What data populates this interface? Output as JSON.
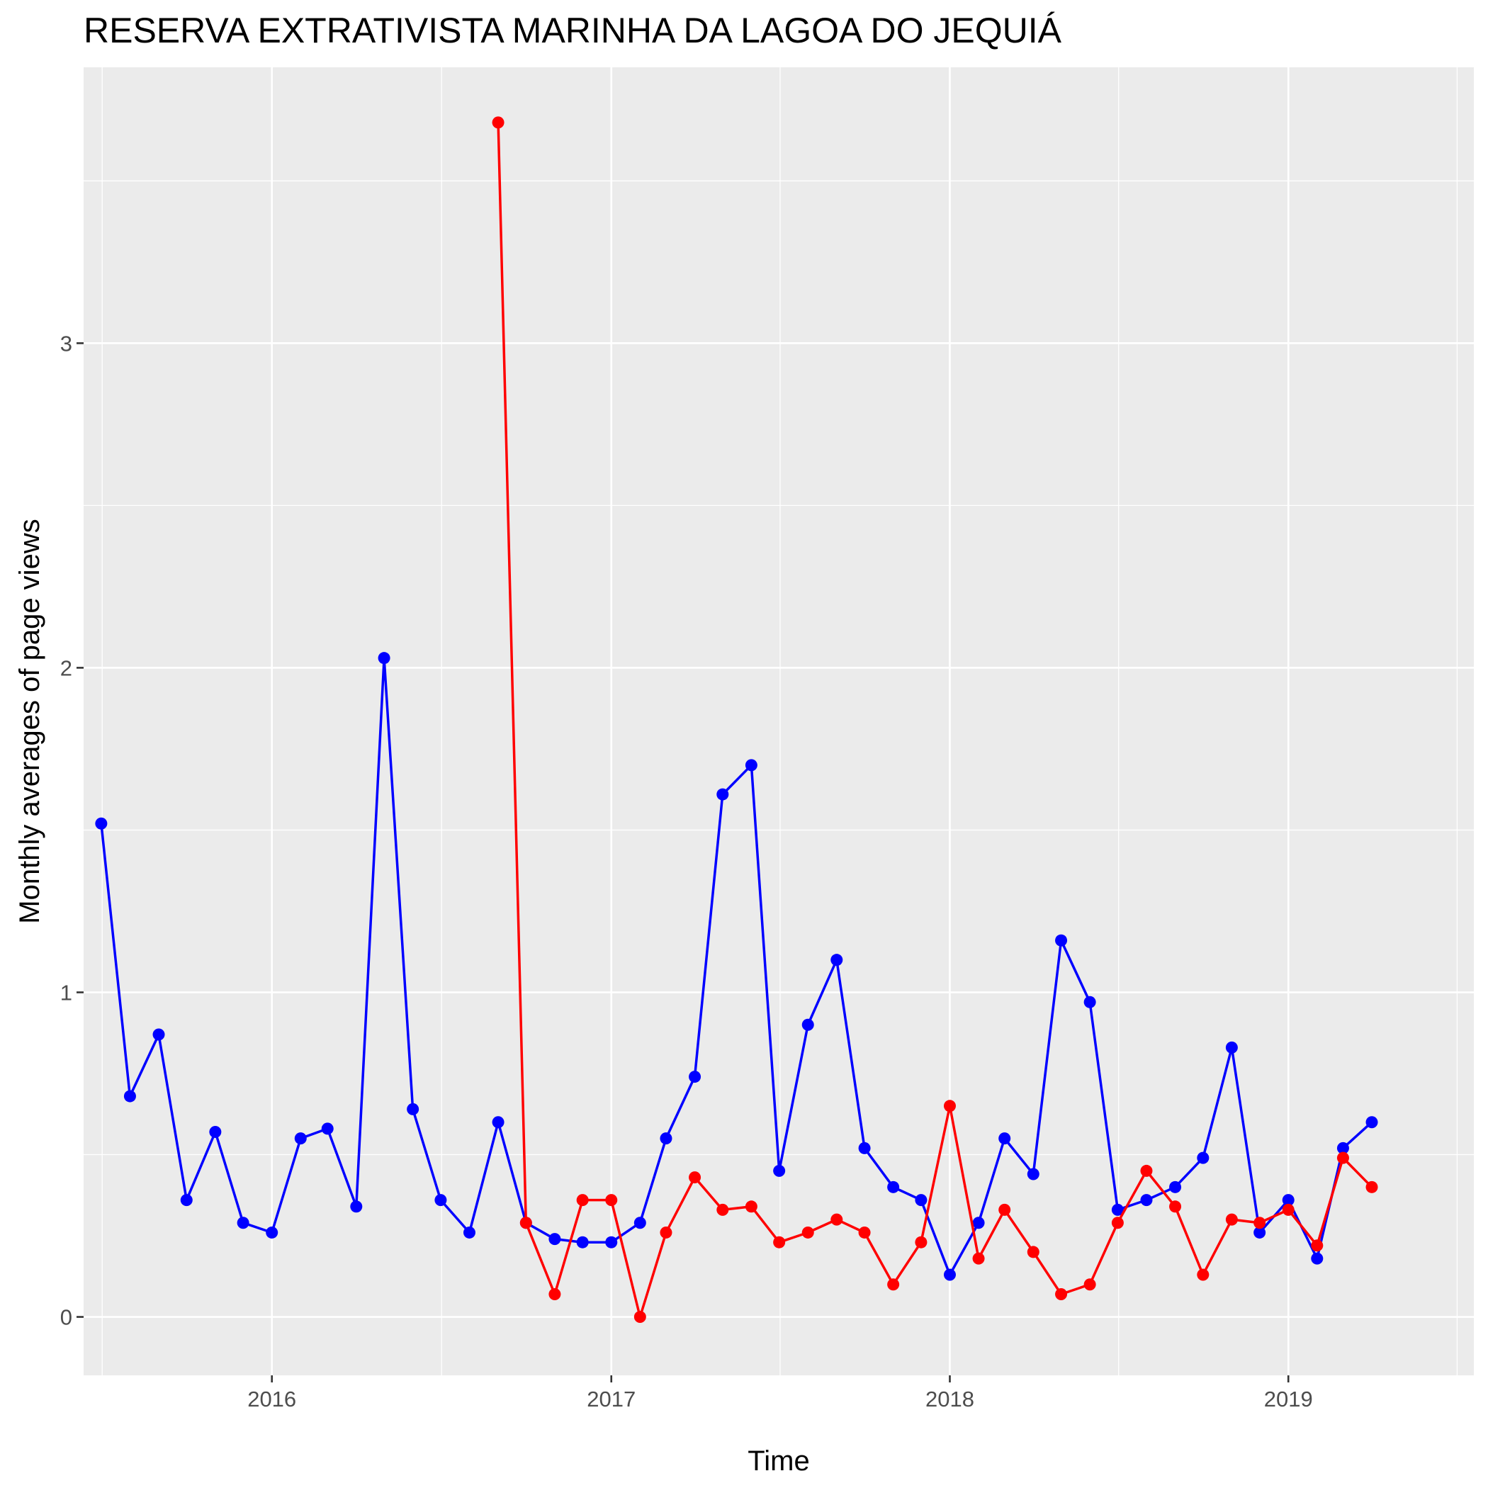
{
  "chart_data": {
    "type": "line",
    "title": "RESERVA EXTRATIVISTA MARINHA DA LAGOA DO JEQUIÁ",
    "xlabel": "Time",
    "ylabel": "Monthly averages of page views",
    "x_ticks": [
      "2016",
      "2017",
      "2018",
      "2019"
    ],
    "y_ticks": [
      "0",
      "1",
      "2",
      "3"
    ],
    "xlim": [
      "2015-06-12",
      "2019-07-20"
    ],
    "ylim": [
      -0.18,
      3.85
    ],
    "grid": true,
    "legend": "none",
    "series": [
      {
        "color": "#0000ff",
        "x": [
          "2015-07-01",
          "2015-08-01",
          "2015-09-01",
          "2015-10-01",
          "2015-11-01",
          "2015-12-01",
          "2016-01-01",
          "2016-02-01",
          "2016-03-01",
          "2016-04-01",
          "2016-05-01",
          "2016-06-01",
          "2016-07-01",
          "2016-08-01",
          "2016-09-01",
          "2016-10-01",
          "2016-11-01",
          "2016-12-01",
          "2017-01-01",
          "2017-02-01",
          "2017-03-01",
          "2017-04-01",
          "2017-05-01",
          "2017-06-01",
          "2017-07-01",
          "2017-08-01",
          "2017-09-01",
          "2017-10-01",
          "2017-11-01",
          "2017-12-01",
          "2018-01-01",
          "2018-02-01",
          "2018-03-01",
          "2018-04-01",
          "2018-05-01",
          "2018-06-01",
          "2018-07-01",
          "2018-08-01",
          "2018-09-01",
          "2018-10-01",
          "2018-11-01",
          "2018-12-01",
          "2019-01-01",
          "2019-02-01",
          "2019-03-01",
          "2019-04-01"
        ],
        "values": [
          1.52,
          0.68,
          0.87,
          0.36,
          0.57,
          0.29,
          0.26,
          0.55,
          0.58,
          0.34,
          2.03,
          0.64,
          0.36,
          0.26,
          0.6,
          0.29,
          0.24,
          0.23,
          0.23,
          0.29,
          0.55,
          0.74,
          1.61,
          1.7,
          0.45,
          0.9,
          1.1,
          0.52,
          0.4,
          0.36,
          0.13,
          0.29,
          0.55,
          0.44,
          1.16,
          0.97,
          0.33,
          0.36,
          0.4,
          0.49,
          0.83,
          0.26,
          0.36,
          0.18,
          0.52,
          0.6
        ]
      },
      {
        "color": "#ff0000",
        "x": [
          "2016-09-01",
          "2016-10-01",
          "2016-11-01",
          "2016-12-01",
          "2017-01-01",
          "2017-02-01",
          "2017-03-01",
          "2017-04-01",
          "2017-05-01",
          "2017-06-01",
          "2017-07-01",
          "2017-08-01",
          "2017-09-01",
          "2017-10-01",
          "2017-11-01",
          "2017-12-01",
          "2018-01-01",
          "2018-02-01",
          "2018-03-01",
          "2018-04-01",
          "2018-05-01",
          "2018-06-01",
          "2018-07-01",
          "2018-08-01",
          "2018-09-01",
          "2018-10-01",
          "2018-11-01",
          "2018-12-01",
          "2019-01-01",
          "2019-02-01",
          "2019-03-01",
          "2019-04-01"
        ],
        "values": [
          3.68,
          0.29,
          0.07,
          0.36,
          0.36,
          0.0,
          0.26,
          0.43,
          0.33,
          0.34,
          0.23,
          0.26,
          0.3,
          0.26,
          0.1,
          0.23,
          0.65,
          0.18,
          0.33,
          0.2,
          0.07,
          0.1,
          0.29,
          0.45,
          0.34,
          0.13,
          0.3,
          0.29,
          0.33,
          0.22,
          0.49,
          0.4
        ]
      }
    ]
  }
}
